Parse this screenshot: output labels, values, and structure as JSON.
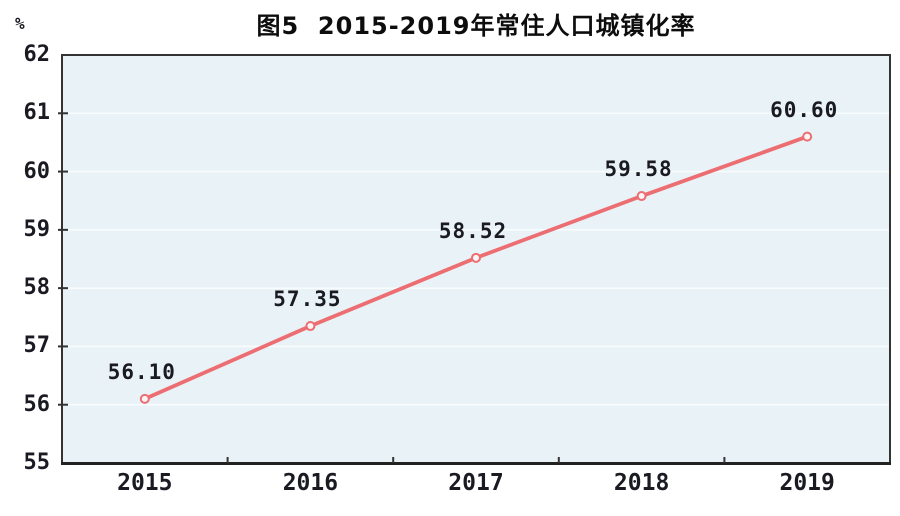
{
  "chart_data": {
    "type": "line",
    "title": "图5  2015-2019年常住人口城镇化率",
    "categories": [
      "2015",
      "2016",
      "2017",
      "2018",
      "2019"
    ],
    "values": [
      56.1,
      57.35,
      58.52,
      59.58,
      60.6
    ],
    "data_labels": [
      "56.10",
      "57.35",
      "58.52",
      "59.58",
      "60.60"
    ],
    "xlabel": "",
    "ylabel": "%",
    "ylim": [
      55,
      62
    ],
    "ytick_interval": 1,
    "grid": true,
    "legend_position": "none",
    "marker": "open-circle",
    "colors": {
      "line": "#ec6e72",
      "marker_fill": "#fdf5f5",
      "plot_bg": "#e9f2f6",
      "gridline": "#f8fcfd",
      "axis": "#333333",
      "text": "#1a1a22",
      "background": "#ffffff"
    }
  }
}
